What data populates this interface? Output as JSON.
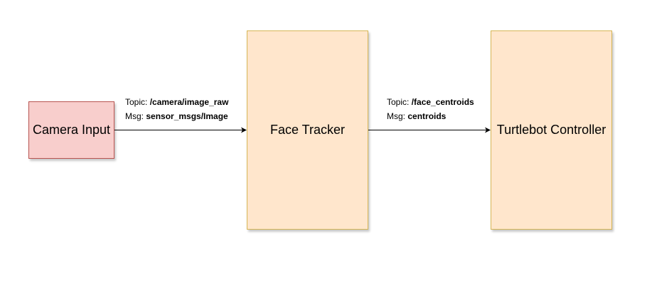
{
  "nodes": {
    "camera": {
      "label": "Camera Input"
    },
    "tracker": {
      "label": "Face Tracker"
    },
    "controller": {
      "label": "Turtlebot Controller"
    }
  },
  "edges": [
    {
      "topic_prefix": "Topic: ",
      "topic": "/camera/image_raw",
      "msg_prefix": "Msg: ",
      "msg": "sensor_msgs/Image"
    },
    {
      "topic_prefix": "Topic: ",
      "topic": "/face_centroids",
      "msg_prefix": "Msg: ",
      "msg": "centroids"
    }
  ],
  "colors": {
    "camera_fill": "#f8cecc",
    "camera_stroke": "#b85450",
    "node_fill": "#ffe6cc",
    "node_stroke": "#d6b656"
  }
}
